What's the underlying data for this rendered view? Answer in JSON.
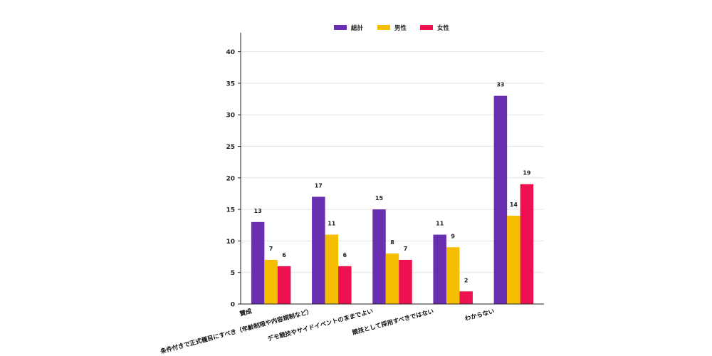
{
  "chart_data": {
    "type": "bar",
    "categories": [
      "賛成",
      "条件付きで正式種目にすべき（年齢制限や内容規制など）",
      "デモ競技やサイドイベントのままでよい",
      "競技として採用すべきではない",
      "わからない"
    ],
    "series": [
      {
        "name": "総計",
        "values": [
          13,
          17,
          15,
          11,
          33
        ],
        "color": "#6a2fb0"
      },
      {
        "name": "男性",
        "values": [
          7,
          11,
          8,
          9,
          14
        ],
        "color": "#f5be00"
      },
      {
        "name": "女性",
        "values": [
          6,
          6,
          7,
          2,
          19
        ],
        "color": "#ee1150"
      }
    ],
    "ylim": [
      0,
      43
    ],
    "yticks": [
      0,
      5,
      10,
      15,
      20,
      25,
      30,
      35,
      40
    ],
    "grid": true,
    "legend": "top-center"
  }
}
